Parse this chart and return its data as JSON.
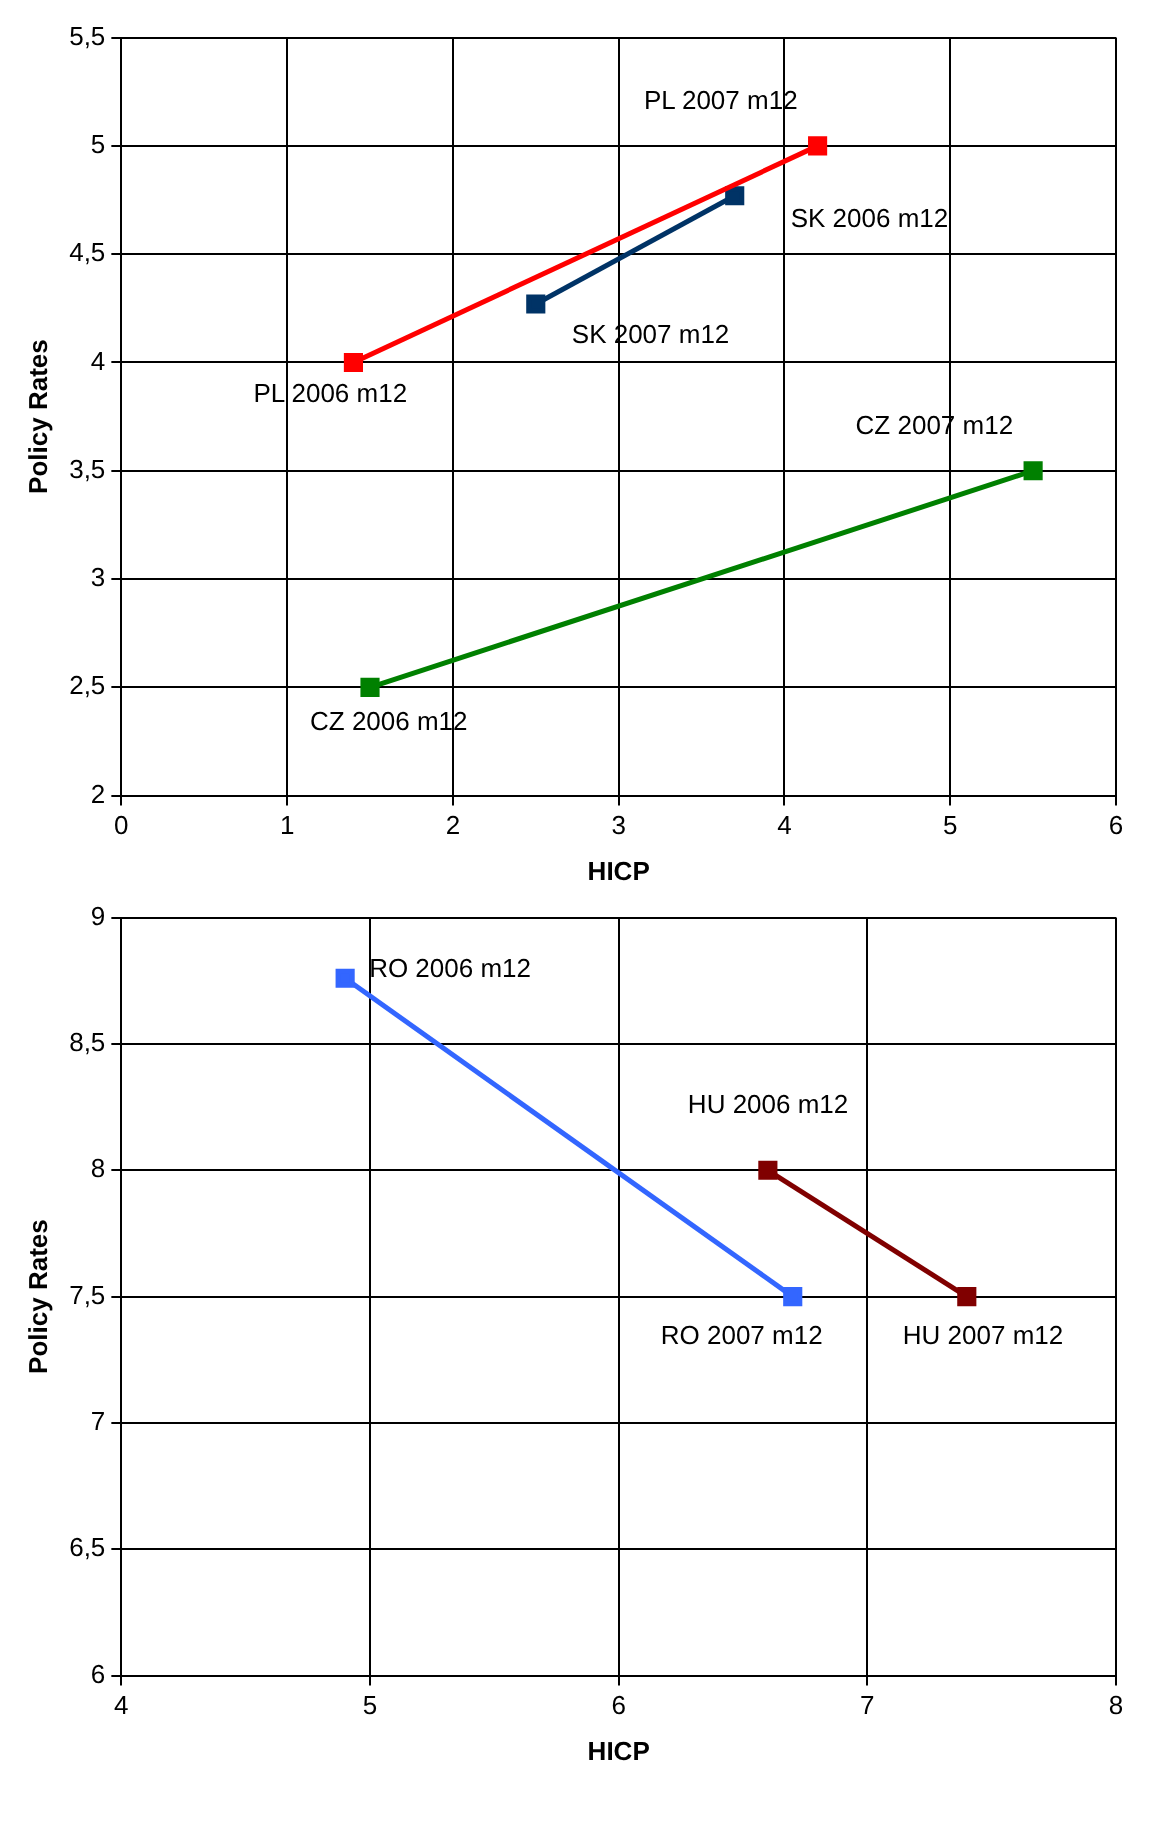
{
  "chart_data": [
    {
      "type": "line",
      "xlabel": "HICP",
      "ylabel": "Policy Rates",
      "marker": "square",
      "line_style": "solid",
      "grid": true,
      "legend": false,
      "xlim": [
        0,
        6
      ],
      "xticks": [
        0,
        1,
        2,
        3,
        4,
        5,
        6
      ],
      "ylim": [
        2,
        5.5
      ],
      "yticks": [
        2,
        {
          "value": 2.5,
          "label": "2,5"
        },
        3,
        {
          "value": 3.5,
          "label": "3,5"
        },
        4,
        {
          "value": 4.5,
          "label": "4,5"
        },
        5,
        {
          "value": 5.5,
          "label": "5,5"
        }
      ],
      "series": [
        {
          "color": "#ff0000",
          "x": [
            1.4,
            4.2
          ],
          "values": [
            4.0,
            5.0
          ]
        },
        {
          "color": "#003366",
          "x": [
            3.7,
            2.5
          ],
          "values": [
            4.77,
            4.27
          ]
        },
        {
          "color": "#008000",
          "x": [
            1.5,
            5.5
          ],
          "values": [
            2.5,
            3.5
          ]
        }
      ],
      "annotations": [
        {
          "text": "PL 2007 m12",
          "x": 4.2,
          "y": 5.0
        },
        {
          "text": "SK 2006 m12",
          "x": 3.7,
          "y": 4.77
        },
        {
          "text": "SK 2007 m12",
          "x": 2.5,
          "y": 4.27
        },
        {
          "text": "PL 2006 m12",
          "x": 1.4,
          "y": 4.0
        },
        {
          "text": "CZ 2007 m12",
          "x": 5.5,
          "y": 3.5
        },
        {
          "text": "CZ 2006 m12",
          "x": 1.5,
          "y": 2.5
        }
      ]
    },
    {
      "type": "line",
      "xlabel": "HICP",
      "ylabel": "Policy Rates",
      "marker": "square",
      "line_style": "solid",
      "grid": true,
      "legend": false,
      "xlim": [
        4,
        8
      ],
      "xticks": [
        4,
        5,
        6,
        7,
        8
      ],
      "ylim": [
        6,
        9
      ],
      "yticks": [
        6,
        {
          "value": 6.5,
          "label": "6,5"
        },
        7,
        {
          "value": 7.5,
          "label": "7,5"
        },
        8,
        {
          "value": 8.5,
          "label": "8,5"
        },
        9
      ],
      "series": [
        {
          "color": "#3366ff",
          "x": [
            4.9,
            6.7
          ],
          "values": [
            8.76,
            7.5
          ]
        },
        {
          "color": "#800000",
          "x": [
            6.6,
            7.4
          ],
          "values": [
            8.0,
            7.5
          ]
        }
      ],
      "annotations": [
        {
          "text": "RO 2006 m12",
          "x": 4.9,
          "y": 8.76
        },
        {
          "text": "HU 2006 m12",
          "x": 6.6,
          "y": 8.0
        },
        {
          "text": "RO 2007 m12",
          "x": 6.7,
          "y": 7.5
        },
        {
          "text": "HU 2007 m12",
          "x": 7.4,
          "y": 7.5
        }
      ]
    }
  ]
}
